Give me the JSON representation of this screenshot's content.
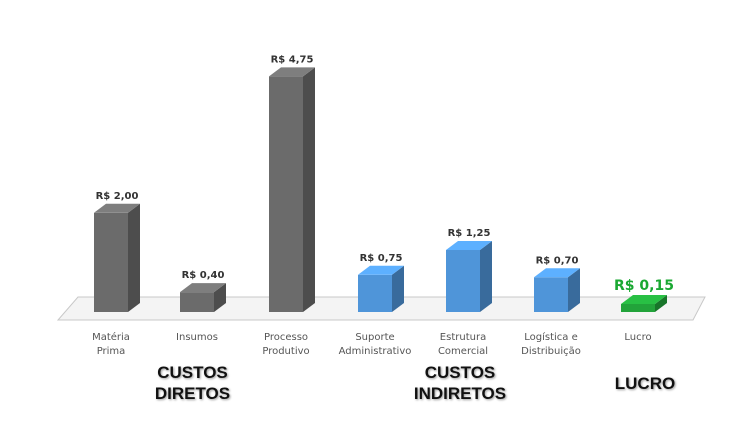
{
  "chart_data": {
    "type": "bar",
    "categories": [
      "Matéria\nPrima",
      "Insumos",
      "Processo\nProdutivo",
      "Suporte\nAdministrativo",
      "Estrutura\nComercial",
      "Logística e\nDistribuição",
      "Lucro"
    ],
    "values": [
      2.0,
      0.4,
      4.75,
      0.75,
      1.25,
      0.7,
      0.15
    ],
    "data_labels": [
      "R$ 2,00",
      "R$ 0,40",
      "R$ 4,75",
      "R$ 0,75",
      "R$ 1,25",
      "R$ 0,70",
      "R$ 0,15"
    ],
    "bar_colors": [
      "#6b6b6b",
      "#6b6b6b",
      "#6b6b6b",
      "#4f95d9",
      "#4f95d9",
      "#4f95d9",
      "#22a33a"
    ],
    "label_colors": [
      "#333333",
      "#333333",
      "#333333",
      "#333333",
      "#333333",
      "#333333",
      "#1aa832"
    ],
    "ylim": [
      0,
      5
    ],
    "grid": false,
    "legend": "none",
    "style": "3d"
  },
  "groups": {
    "diretos": [
      "CUSTOS",
      "DIRETOS"
    ],
    "indiretos": [
      "CUSTOS",
      "INDIRETOS"
    ],
    "lucro": [
      "LUCRO"
    ]
  }
}
